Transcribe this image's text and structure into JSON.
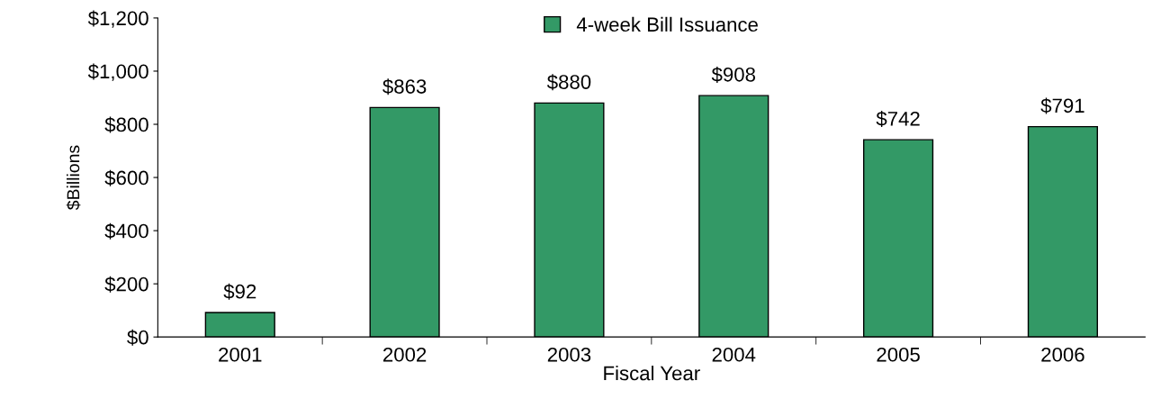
{
  "chart_data": {
    "type": "bar",
    "xlabel": "Fiscal Year",
    "ylabel": "$Billions",
    "categories": [
      "2001",
      "2002",
      "2003",
      "2004",
      "2005",
      "2006"
    ],
    "series": [
      {
        "name": "4-week Bill Issuance",
        "color": "#339966",
        "values": [
          92,
          863,
          880,
          908,
          742,
          791
        ],
        "value_labels": [
          "$92",
          "$863",
          "$880",
          "$908",
          "$742",
          "$791"
        ]
      }
    ],
    "ylim": [
      0,
      1200
    ],
    "yticks": [
      {
        "value": 0,
        "label": "$0"
      },
      {
        "value": 200,
        "label": "$200"
      },
      {
        "value": 400,
        "label": "$400"
      },
      {
        "value": 600,
        "label": "$600"
      },
      {
        "value": 800,
        "label": "$800"
      },
      {
        "value": 1000,
        "label": "$1,000"
      },
      {
        "value": 1200,
        "label": "$1,200"
      }
    ],
    "legend": "top",
    "grid": false
  }
}
